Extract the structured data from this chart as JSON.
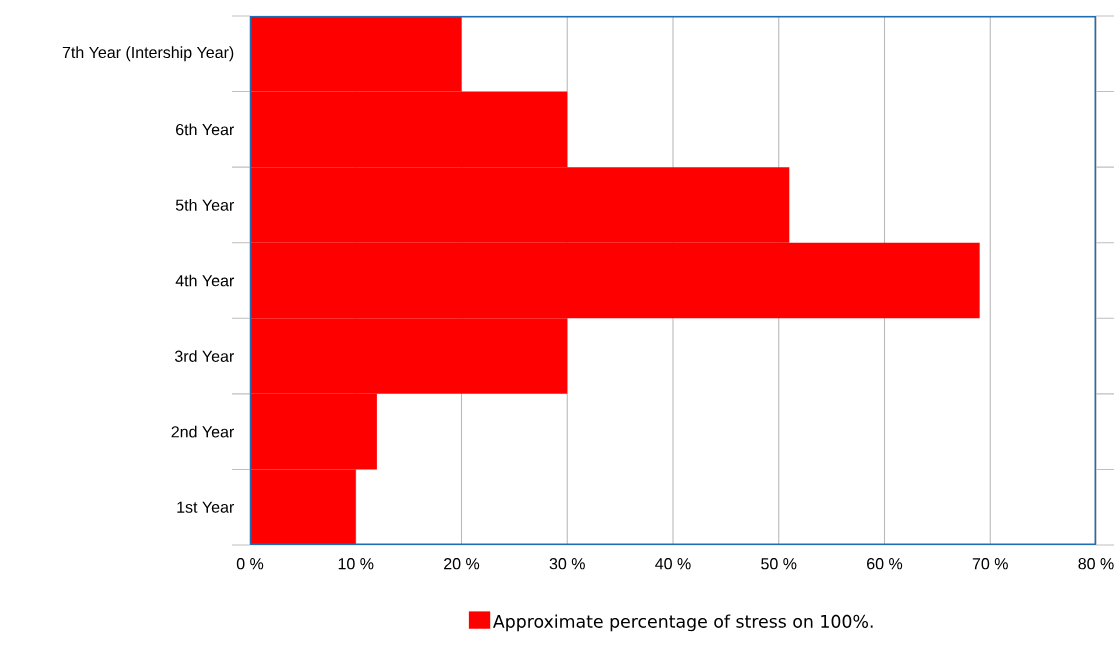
{
  "chart_data": {
    "type": "bar",
    "orientation": "horizontal",
    "categories": [
      "7th Year (Intership Year)",
      "6th Year",
      "5th Year",
      "4th Year",
      "3rd Year",
      "2nd Year",
      "1st Year"
    ],
    "series": [
      {
        "name": "Approximate percentage of stress on 100%.",
        "color": "#ff0000",
        "values": [
          20,
          30,
          51,
          69,
          30,
          12,
          10
        ]
      }
    ],
    "xlim": [
      0,
      80
    ],
    "xticks": [
      {
        "value": 0,
        "label": "0 %"
      },
      {
        "value": 10,
        "label": "10 %"
      },
      {
        "value": 20,
        "label": "20 %"
      },
      {
        "value": 30,
        "label": "30 %"
      },
      {
        "value": 40,
        "label": "40 %"
      },
      {
        "value": 50,
        "label": "50 %"
      },
      {
        "value": 60,
        "label": "60 %"
      },
      {
        "value": 70,
        "label": "70 %"
      },
      {
        "value": 80,
        "label": "80 %"
      }
    ],
    "grid": "x",
    "legend": "bottom"
  }
}
